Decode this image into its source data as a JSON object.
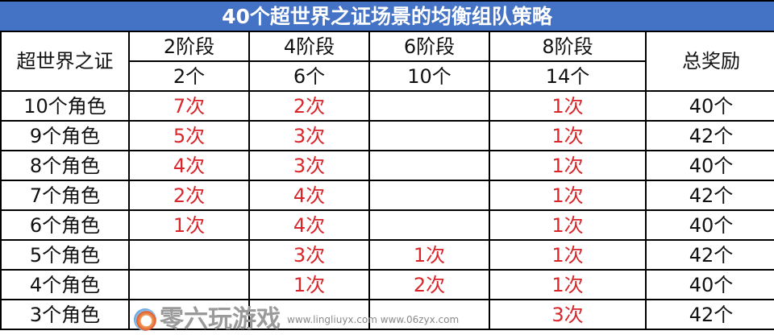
{
  "title": "40个超世界之证场景的均衡组队策略",
  "header": {
    "corner": "超世界之证",
    "stages": [
      {
        "label": "2阶段",
        "count": "2个"
      },
      {
        "label": "4阶段",
        "count": "6个"
      },
      {
        "label": "6阶段",
        "count": "10个"
      },
      {
        "label": "8阶段",
        "count": "14个"
      }
    ],
    "total": "总奖励"
  },
  "rows": [
    {
      "label": "10个角色",
      "cells": [
        "7次",
        "2次",
        "",
        "1次"
      ],
      "total": "40个"
    },
    {
      "label": "9个角色",
      "cells": [
        "5次",
        "3次",
        "",
        "1次"
      ],
      "total": "42个"
    },
    {
      "label": "8个角色",
      "cells": [
        "4次",
        "3次",
        "",
        "1次"
      ],
      "total": "40个"
    },
    {
      "label": "7个角色",
      "cells": [
        "2次",
        "4次",
        "",
        "1次"
      ],
      "total": "42个"
    },
    {
      "label": "6个角色",
      "cells": [
        "1次",
        "4次",
        "",
        "1次"
      ],
      "total": "40个"
    },
    {
      "label": "5个角色",
      "cells": [
        "",
        "3次",
        "1次",
        "1次"
      ],
      "total": "42个"
    },
    {
      "label": "4个角色",
      "cells": [
        "",
        "1次",
        "2次",
        "1次"
      ],
      "total": "40个"
    },
    {
      "label": "3个角色",
      "cells": [
        "",
        "",
        "",
        "3次"
      ],
      "total": "42个"
    }
  ],
  "colors": {
    "title_bg": "#4472C4",
    "count_text": "#D9262B"
  },
  "watermark": {
    "name": "零六玩游戏",
    "url": "www.lingliuyx.com  www.06zyx.com"
  }
}
